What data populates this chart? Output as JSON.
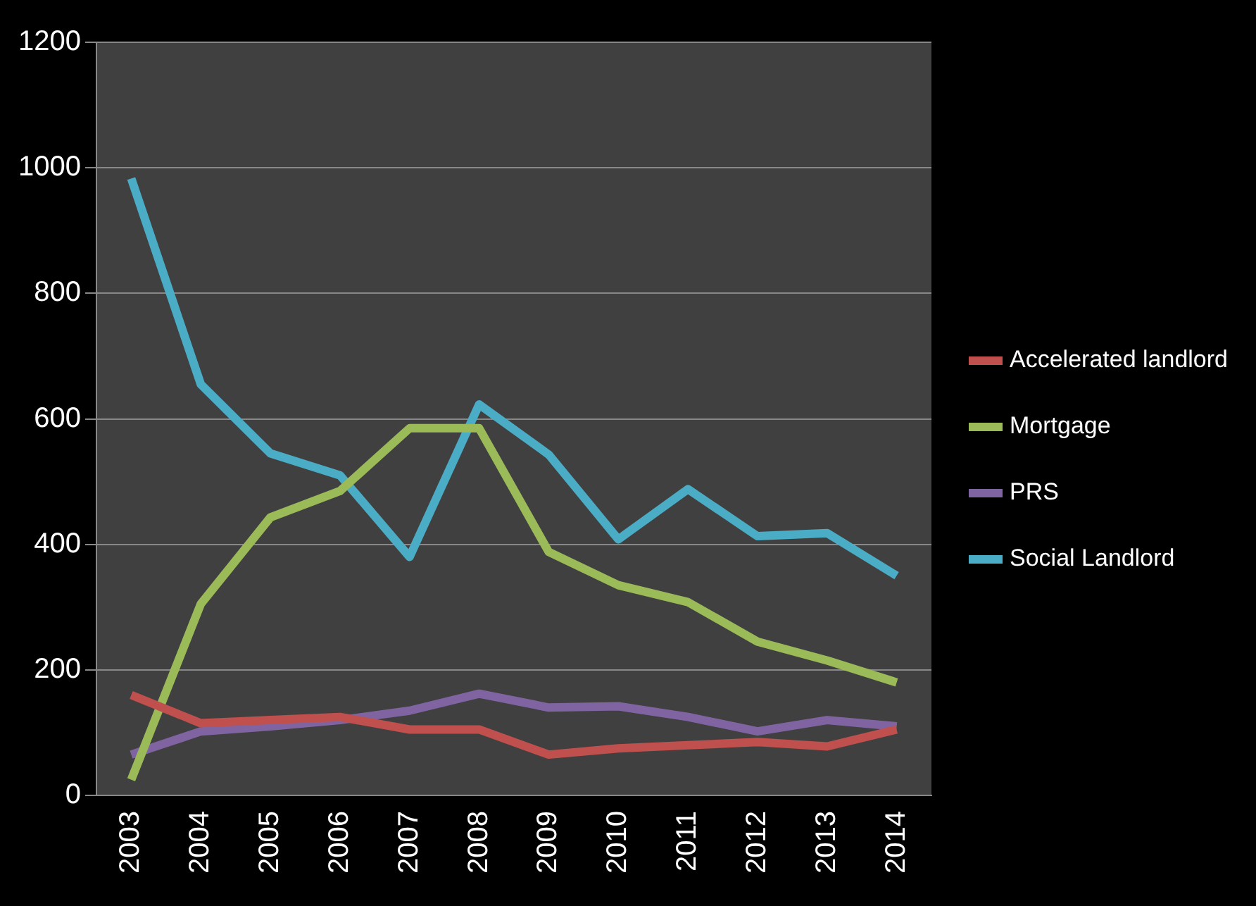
{
  "chart_data": {
    "type": "line",
    "categories": [
      "2003",
      "2004",
      "2005",
      "2006",
      "2007",
      "2008",
      "2009",
      "2010",
      "2011",
      "2012",
      "2013",
      "2014"
    ],
    "series": [
      {
        "name": "Accelerated landlord",
        "color": "#c0504d",
        "values": [
          160,
          115,
          120,
          125,
          105,
          105,
          65,
          75,
          80,
          85,
          78,
          105
        ]
      },
      {
        "name": "Mortgage",
        "color": "#9bbb59",
        "values": [
          25,
          305,
          443,
          485,
          585,
          585,
          388,
          335,
          308,
          245,
          215,
          180
        ]
      },
      {
        "name": "PRS",
        "color": "#8064a2",
        "values": [
          65,
          102,
          110,
          120,
          135,
          162,
          140,
          142,
          125,
          102,
          120,
          110
        ]
      },
      {
        "name": "Social Landlord",
        "color": "#4bacc6",
        "values": [
          983,
          655,
          545,
          510,
          380,
          623,
          543,
          408,
          488,
          413,
          418,
          350
        ]
      }
    ],
    "ylim": [
      0,
      1200
    ],
    "yticks": [
      0,
      200,
      400,
      600,
      800,
      1000,
      1200
    ],
    "grid": "y",
    "legend": "right",
    "marker": "none"
  }
}
